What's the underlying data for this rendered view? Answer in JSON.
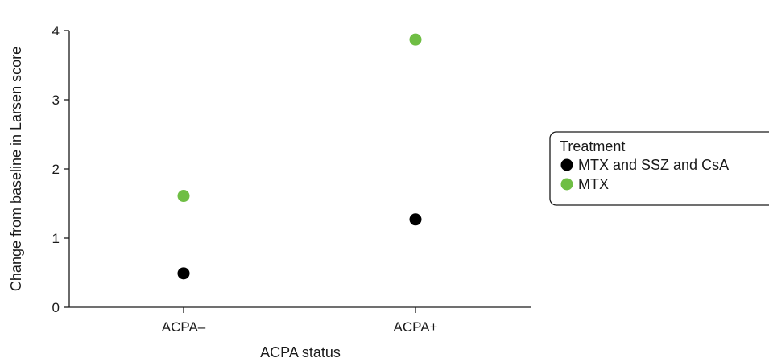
{
  "chart_data": {
    "type": "scatter",
    "xlabel": "ACPA status",
    "ylabel": "Change from baseline in Larsen score",
    "categories": [
      "ACPA–",
      "ACPA+"
    ],
    "ylim": [
      0,
      4
    ],
    "yticks": [
      0,
      1,
      2,
      3,
      4
    ],
    "grid": false,
    "series": [
      {
        "name": "MTX and SSZ and CsA",
        "color": "#000000",
        "values": [
          0.49,
          1.27
        ]
      },
      {
        "name": "MTX",
        "color": "#6fbe44",
        "values": [
          1.61,
          3.87
        ]
      }
    ],
    "legend": {
      "title": "Treatment",
      "position": "right"
    }
  }
}
